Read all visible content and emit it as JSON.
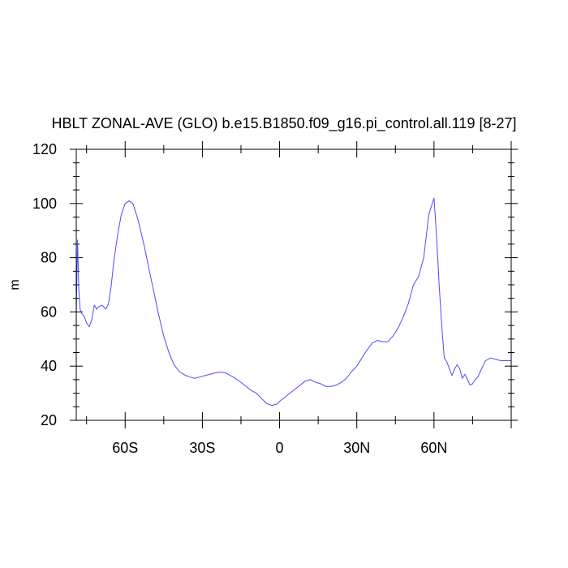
{
  "chart_data": {
    "type": "line",
    "title": "HBLT ZONAL-AVE (GLO) b.e15.B1850.f09_g16.pi_control.all.119 [8-27]",
    "xlabel": "",
    "ylabel": "m",
    "xlim": [
      -79,
      90
    ],
    "ylim": [
      20,
      120
    ],
    "x_ticks": [
      {
        "value": -60,
        "label": "60S"
      },
      {
        "value": -30,
        "label": "30S"
      },
      {
        "value": 0,
        "label": "0"
      },
      {
        "value": 30,
        "label": "30N"
      },
      {
        "value": 60,
        "label": "60N"
      }
    ],
    "y_ticks": [
      {
        "value": 20,
        "label": "20"
      },
      {
        "value": 40,
        "label": "40"
      },
      {
        "value": 60,
        "label": "60"
      },
      {
        "value": 80,
        "label": "80"
      },
      {
        "value": 100,
        "label": "100"
      },
      {
        "value": 120,
        "label": "120"
      }
    ],
    "grid": false,
    "line_color": "#4b4bff",
    "series": [
      {
        "x": [
          -79,
          -78.5,
          -78,
          -77.5,
          -77,
          -76,
          -75,
          -74,
          -73,
          -72,
          -71,
          -70.2,
          -69,
          -67.5,
          -66.5,
          -65.5,
          -64.5,
          -63,
          -61.5,
          -60,
          -58.5,
          -57,
          -56,
          -55,
          -54,
          -52.5,
          -51,
          -49,
          -47,
          -45,
          -43,
          -41,
          -39,
          -37,
          -35,
          -33,
          -31,
          -29,
          -27,
          -25,
          -23,
          -21,
          -18,
          -15,
          -13,
          -11,
          -9,
          -7,
          -5,
          -3,
          -1,
          0,
          2,
          4,
          6,
          8,
          10,
          12,
          14,
          16,
          18,
          20,
          22,
          24,
          26,
          28,
          30,
          32,
          34,
          36,
          38,
          40,
          42,
          44,
          46,
          48,
          50,
          52,
          54,
          56,
          58,
          60,
          61,
          62,
          63,
          64,
          65,
          66,
          67,
          68,
          69,
          70,
          71,
          72,
          73,
          74,
          75,
          76,
          77,
          78,
          79,
          80,
          82,
          84,
          86,
          88,
          90
        ],
        "y": [
          59,
          86.5,
          68,
          61,
          59.5,
          58.5,
          56,
          54.5,
          57,
          62.5,
          61,
          62,
          62.5,
          61,
          63,
          69,
          78,
          88,
          96,
          100,
          101,
          100,
          97,
          94,
          90,
          84,
          77,
          68,
          59,
          51,
          45,
          40.5,
          38,
          36.8,
          36,
          35.5,
          36,
          36.5,
          37,
          37.5,
          37.8,
          37.5,
          36,
          34,
          32.5,
          31,
          30,
          28,
          26.2,
          25.5,
          26,
          27,
          28.5,
          30,
          31.5,
          33,
          34.5,
          35,
          34,
          33.5,
          32.5,
          32.5,
          33,
          34,
          35.5,
          38,
          40,
          43,
          46,
          48.5,
          49.5,
          49,
          49,
          51,
          54,
          58,
          63,
          70,
          73,
          80,
          96,
          102,
          88,
          70,
          55,
          43,
          41.5,
          39,
          36.5,
          39,
          40.5,
          39,
          35.5,
          37,
          35,
          33,
          33.5,
          35,
          36,
          38,
          40,
          42,
          43,
          42.5,
          42,
          42,
          42
        ]
      }
    ]
  }
}
